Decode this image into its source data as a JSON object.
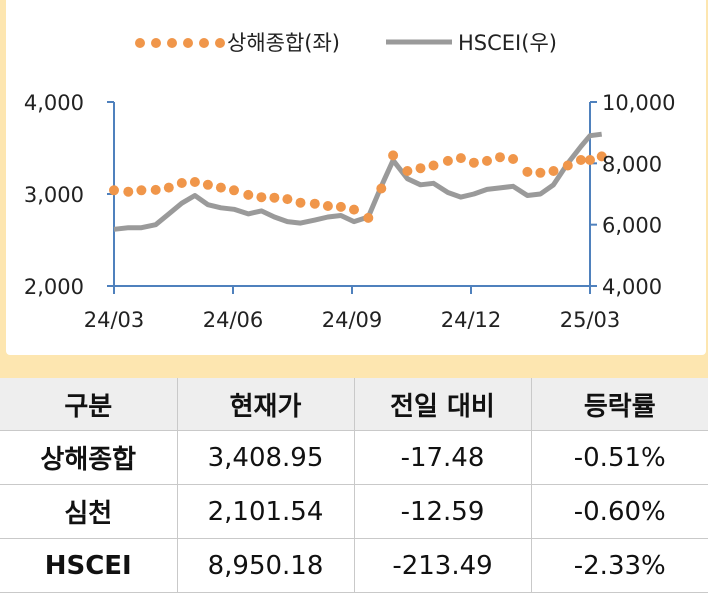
{
  "legend": {
    "series1_label": "상해종합(좌)",
    "series2_label": "HSCEI(우)"
  },
  "chart_data": {
    "type": "line",
    "x_ticks": [
      "24/03",
      "24/06",
      "24/09",
      "24/12",
      "25/03"
    ],
    "y_left": {
      "ticks": [
        "2,000",
        "3,000",
        "4,000"
      ],
      "range": [
        2000,
        4000
      ]
    },
    "y_right": {
      "ticks": [
        "4,000",
        "6,000",
        "8,000",
        "10,000"
      ],
      "range": [
        4000,
        10000
      ]
    },
    "colors": {
      "series1": "#f0964a",
      "series2": "#9a9a9a",
      "axis": "#4f81bd"
    },
    "series": [
      {
        "name": "상해종합(좌)",
        "axis": "left",
        "style": "dotted",
        "x": [
          "2024-03-01",
          "2024-03-12",
          "2024-03-22",
          "2024-04-02",
          "2024-04-12",
          "2024-04-22",
          "2024-05-02",
          "2024-05-12",
          "2024-05-22",
          "2024-06-01",
          "2024-06-12",
          "2024-06-22",
          "2024-07-02",
          "2024-07-12",
          "2024-07-22",
          "2024-08-02",
          "2024-08-12",
          "2024-08-22",
          "2024-09-01",
          "2024-09-12",
          "2024-09-22",
          "2024-10-01",
          "2024-10-12",
          "2024-10-22",
          "2024-11-01",
          "2024-11-12",
          "2024-11-22",
          "2024-12-02",
          "2024-12-12",
          "2024-12-22",
          "2025-01-01",
          "2025-01-12",
          "2025-01-22",
          "2025-02-01",
          "2025-02-12",
          "2025-02-22",
          "2025-03-01",
          "2025-03-10"
        ],
        "values": [
          3040,
          3025,
          3040,
          3045,
          3070,
          3120,
          3130,
          3100,
          3070,
          3040,
          2990,
          2965,
          2960,
          2945,
          2905,
          2895,
          2870,
          2860,
          2830,
          2740,
          3060,
          3420,
          3250,
          3280,
          3310,
          3360,
          3390,
          3340,
          3360,
          3400,
          3380,
          3240,
          3230,
          3250,
          3310,
          3370,
          3370,
          3409
        ]
      },
      {
        "name": "HSCEI(우)",
        "axis": "right",
        "style": "solid",
        "x": [
          "2024-03-01",
          "2024-03-12",
          "2024-03-22",
          "2024-04-02",
          "2024-04-12",
          "2024-04-22",
          "2024-05-02",
          "2024-05-12",
          "2024-05-22",
          "2024-06-01",
          "2024-06-12",
          "2024-06-22",
          "2024-07-02",
          "2024-07-12",
          "2024-07-22",
          "2024-08-02",
          "2024-08-12",
          "2024-08-22",
          "2024-09-01",
          "2024-09-12",
          "2024-09-22",
          "2024-10-01",
          "2024-10-12",
          "2024-10-22",
          "2024-11-01",
          "2024-11-12",
          "2024-11-22",
          "2024-12-02",
          "2024-12-12",
          "2024-12-22",
          "2025-01-01",
          "2025-01-12",
          "2025-01-22",
          "2025-02-01",
          "2025-02-12",
          "2025-02-22",
          "2025-03-01",
          "2025-03-10"
        ],
        "values": [
          5850,
          5900,
          5900,
          6000,
          6350,
          6700,
          6950,
          6650,
          6550,
          6500,
          6350,
          6450,
          6250,
          6100,
          6050,
          6150,
          6250,
          6300,
          6100,
          6250,
          7250,
          8100,
          7500,
          7300,
          7350,
          7050,
          6900,
          7000,
          7150,
          7200,
          7250,
          6950,
          7000,
          7300,
          8000,
          8550,
          8900,
          8950
        ]
      }
    ]
  },
  "table": {
    "headers": [
      "구분",
      "현재가",
      "전일 대비",
      "등락률"
    ],
    "rows": [
      [
        "상해종합",
        "3,408.95",
        "-17.48",
        "-0.51%"
      ],
      [
        "심천",
        "2,101.54",
        "-12.59",
        "-0.60%"
      ],
      [
        "HSCEI",
        "8,950.18",
        "-213.49",
        "-2.33%"
      ]
    ]
  }
}
